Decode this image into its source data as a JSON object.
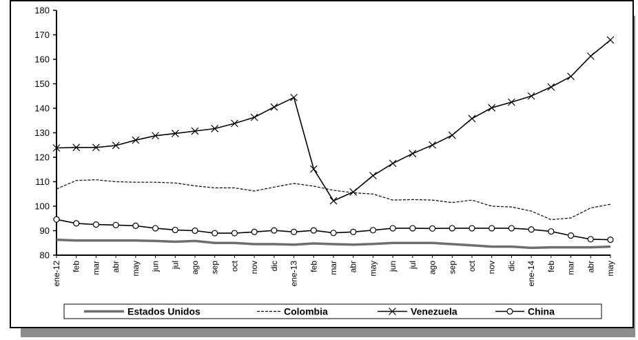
{
  "chart_data": {
    "type": "line",
    "ylim": [
      80,
      180
    ],
    "y_ticks": [
      80,
      90,
      100,
      110,
      120,
      130,
      140,
      150,
      160,
      170,
      180
    ],
    "categories": [
      "ene-12",
      "feb",
      "mar",
      "abr",
      "may",
      "jun",
      "jul",
      "ago",
      "sep",
      "oct",
      "nov",
      "dic",
      "ene-13",
      "feb",
      "mar",
      "abr",
      "may",
      "jun",
      "jul",
      "ago",
      "sep",
      "oct",
      "nov",
      "dic",
      "ene-14",
      "feb",
      "mar",
      "abr",
      "may"
    ],
    "grid": false,
    "legend_position": "bottom",
    "series": [
      {
        "name": "Estados Unidos",
        "style": "thick-gray",
        "color": "#6e6e6e",
        "values": [
          86.3,
          86.0,
          86.0,
          86.0,
          86.0,
          85.8,
          85.5,
          85.8,
          85.0,
          85.0,
          84.5,
          84.5,
          84.3,
          84.8,
          84.5,
          84.3,
          84.6,
          85.0,
          85.0,
          85.0,
          84.5,
          84.0,
          83.5,
          83.5,
          83.0,
          83.2,
          83.2,
          83.2,
          83.5
        ]
      },
      {
        "name": "Colombia",
        "style": "dashed",
        "color": "#000000",
        "values": [
          107.0,
          110.5,
          110.8,
          110.0,
          109.8,
          109.8,
          109.5,
          108.3,
          107.5,
          107.5,
          106.2,
          107.8,
          109.3,
          108.2,
          106.5,
          105.5,
          105.0,
          102.5,
          102.7,
          102.5,
          101.5,
          102.5,
          100.0,
          99.7,
          98.0,
          94.5,
          95.2,
          99.3,
          100.8
        ]
      },
      {
        "name": "Venezuela",
        "style": "x-markers",
        "color": "#000000",
        "values": [
          123.8,
          124.0,
          124.0,
          124.8,
          127.0,
          128.8,
          129.7,
          130.7,
          131.7,
          133.8,
          136.3,
          140.5,
          144.4,
          115.2,
          102.2,
          105.8,
          112.5,
          117.5,
          121.5,
          125.0,
          129.0,
          135.8,
          140.2,
          142.5,
          145.0,
          148.7,
          153.0,
          161.3,
          167.9
        ]
      },
      {
        "name": "China",
        "style": "circle-markers",
        "color": "#000000",
        "values": [
          94.6,
          93.0,
          92.5,
          92.3,
          92.0,
          91.0,
          90.3,
          90.0,
          89.0,
          89.0,
          89.5,
          90.1,
          89.5,
          90.1,
          89.1,
          89.5,
          90.2,
          91.0,
          91.0,
          90.9,
          91.0,
          91.0,
          91.0,
          91.0,
          90.5,
          89.7,
          88.0,
          86.5,
          86.3
        ]
      }
    ]
  }
}
